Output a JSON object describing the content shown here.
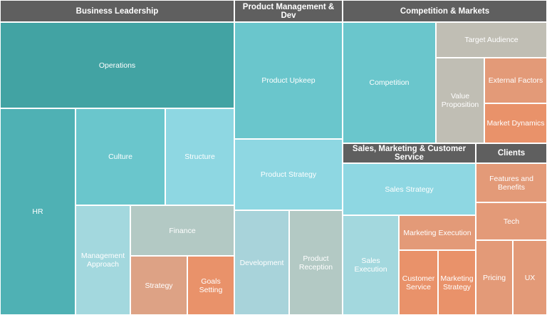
{
  "chart_data": {
    "type": "treemap",
    "groups": [
      {
        "name": "Business Leadership",
        "items": [
          "Operations",
          "HR",
          "Culture",
          "Structure",
          "Management Approach",
          "Finance",
          "Strategy",
          "Goals Setting"
        ]
      },
      {
        "name": "Product Management & Dev",
        "items": [
          "Product Upkeep",
          "Product Strategy",
          "Development",
          "Product Reception"
        ]
      },
      {
        "name": "Competition & Markets",
        "items": [
          "Competition",
          "Target Audience",
          "Value Proposition",
          "External Factors",
          "Market Dynamics"
        ]
      },
      {
        "name": "Sales, Marketing & Customer Service",
        "items": [
          "Sales Strategy",
          "Sales Execution",
          "Marketing Execution",
          "Customer Service",
          "Marketing Strategy"
        ]
      },
      {
        "name": "Clients",
        "items": [
          "Features and Benefits",
          "Tech",
          "Pricing",
          "UX"
        ]
      }
    ],
    "colors": {
      "header": "#5f5f5f",
      "teal_dark": "#42a3a3",
      "teal": "#4fb1b4",
      "cyan": "#6ac6cc",
      "cyan_light": "#8ed7e2",
      "aqua_pale": "#a3d8de",
      "blue_grey": "#a8d3da",
      "sage": "#b3c9c4",
      "grey_beige": "#c0beb4",
      "salmon": "#e39a78",
      "salmon_light": "#dda285",
      "orange": "#e9926a"
    }
  }
}
